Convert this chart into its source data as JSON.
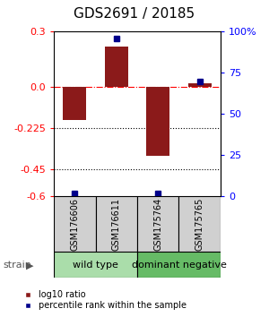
{
  "title": "GDS2691 / 20185",
  "samples": [
    "GSM176606",
    "GSM176611",
    "GSM175764",
    "GSM175765"
  ],
  "log10_ratio": [
    -0.18,
    0.22,
    -0.38,
    0.02
  ],
  "percentile_rank": [
    2,
    96,
    2,
    70
  ],
  "groups": [
    {
      "label": "wild type",
      "color": "#aaddaa",
      "samples": [
        0,
        1
      ]
    },
    {
      "label": "dominant negative",
      "color": "#66bb66",
      "samples": [
        2,
        3
      ]
    }
  ],
  "ylim_left": [
    -0.6,
    0.3
  ],
  "ylim_right": [
    0,
    100
  ],
  "yticks_left": [
    0.3,
    0.0,
    -0.225,
    -0.45,
    -0.6
  ],
  "yticks_right": [
    100,
    75,
    50,
    25,
    0
  ],
  "dotted_lines": [
    -0.225,
    -0.45
  ],
  "bar_color": "#8B1A1A",
  "dot_color": "#00008B",
  "background_color": "#ffffff",
  "legend_ratio_label": "log10 ratio",
  "legend_rank_label": "percentile rank within the sample",
  "title_fontsize": 11,
  "tick_fontsize": 8,
  "sample_fontsize": 7,
  "group_fontsize": 8,
  "legend_fontsize": 7,
  "strain_fontsize": 8
}
